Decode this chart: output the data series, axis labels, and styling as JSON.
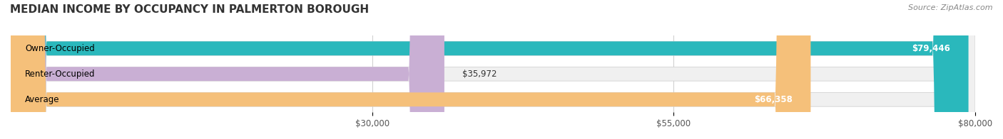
{
  "title": "MEDIAN INCOME BY OCCUPANCY IN PALMERTON BOROUGH",
  "source": "Source: ZipAtlas.com",
  "categories": [
    "Owner-Occupied",
    "Renter-Occupied",
    "Average"
  ],
  "values": [
    79446,
    35972,
    66358
  ],
  "labels": [
    "$79,446",
    "$35,972",
    "$66,358"
  ],
  "colors": [
    "#2ab8bc",
    "#c9afd4",
    "#f5c07a"
  ],
  "bar_bg_color": "#f0f0f0",
  "xmin": 0,
  "xmax": 80000,
  "xticks": [
    30000,
    55000,
    80000
  ],
  "xtick_labels": [
    "$30,000",
    "$55,000",
    "$80,000"
  ],
  "title_fontsize": 11,
  "source_fontsize": 8,
  "label_fontsize": 8.5,
  "cat_fontsize": 8.5,
  "value_fontsize": 8.5,
  "bar_height": 0.55,
  "figsize": [
    14.06,
    1.96
  ],
  "dpi": 100
}
